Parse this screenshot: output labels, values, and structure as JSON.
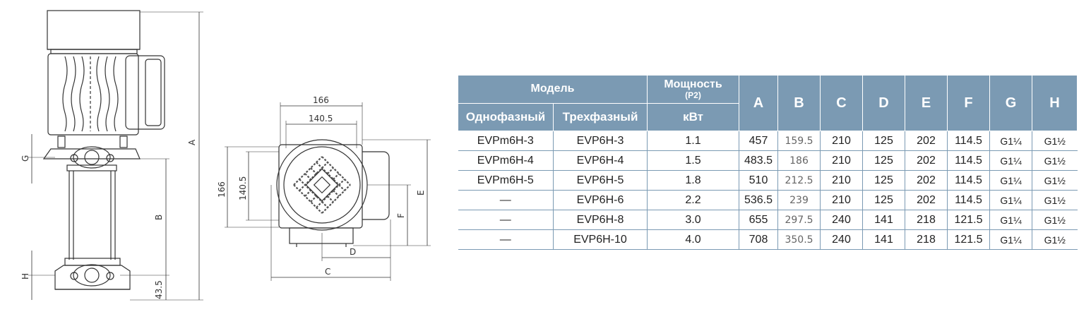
{
  "drawing": {
    "front_labels": {
      "A": "A",
      "B": "B",
      "G": "G",
      "H": "H",
      "base": "43.5"
    },
    "side_labels": {
      "w_outer": "166",
      "w_inner": "140.5",
      "h_outer": "166",
      "h_inner": "140.5",
      "C": "C",
      "D": "D",
      "E": "E",
      "F": "F"
    }
  },
  "table": {
    "header": {
      "model": "Модель",
      "power": "Мощность",
      "power_sub": "(P2)",
      "single": "Однофазный",
      "three": "Трехфазный",
      "unit": "кВт",
      "cols": [
        "A",
        "B",
        "C",
        "D",
        "E",
        "F",
        "G",
        "H"
      ]
    },
    "rows": [
      {
        "single": "EVPm6H-3",
        "three": "EVP6H-3",
        "kw": "1.1",
        "A": "457",
        "B": "159.5",
        "C": "210",
        "D": "125",
        "E": "202",
        "F": "114.5",
        "G": "G1¼",
        "H": "G1½"
      },
      {
        "single": "EVPm6H-4",
        "three": "EVP6H-4",
        "kw": "1.5",
        "A": "483.5",
        "B": "186",
        "C": "210",
        "D": "125",
        "E": "202",
        "F": "114.5",
        "G": "G1¼",
        "H": "G1½"
      },
      {
        "single": "EVPm6H-5",
        "three": "EVP6H-5",
        "kw": "1.8",
        "A": "510",
        "B": "212.5",
        "C": "210",
        "D": "125",
        "E": "202",
        "F": "114.5",
        "G": "G1¼",
        "H": "G1½"
      },
      {
        "single": "—",
        "three": "EVP6H-6",
        "kw": "2.2",
        "A": "536.5",
        "B": "239",
        "C": "210",
        "D": "125",
        "E": "202",
        "F": "114.5",
        "G": "G1¼",
        "H": "G1½"
      },
      {
        "single": "—",
        "three": "EVP6H-8",
        "kw": "3.0",
        "A": "655",
        "B": "297.5",
        "C": "240",
        "D": "141",
        "E": "218",
        "F": "121.5",
        "G": "G1¼",
        "H": "G1½"
      },
      {
        "single": "—",
        "three": "EVP6H-10",
        "kw": "4.0",
        "A": "708",
        "B": "350.5",
        "C": "240",
        "D": "141",
        "E": "218",
        "F": "121.5",
        "G": "G1¼",
        "H": "G1½"
      }
    ]
  }
}
